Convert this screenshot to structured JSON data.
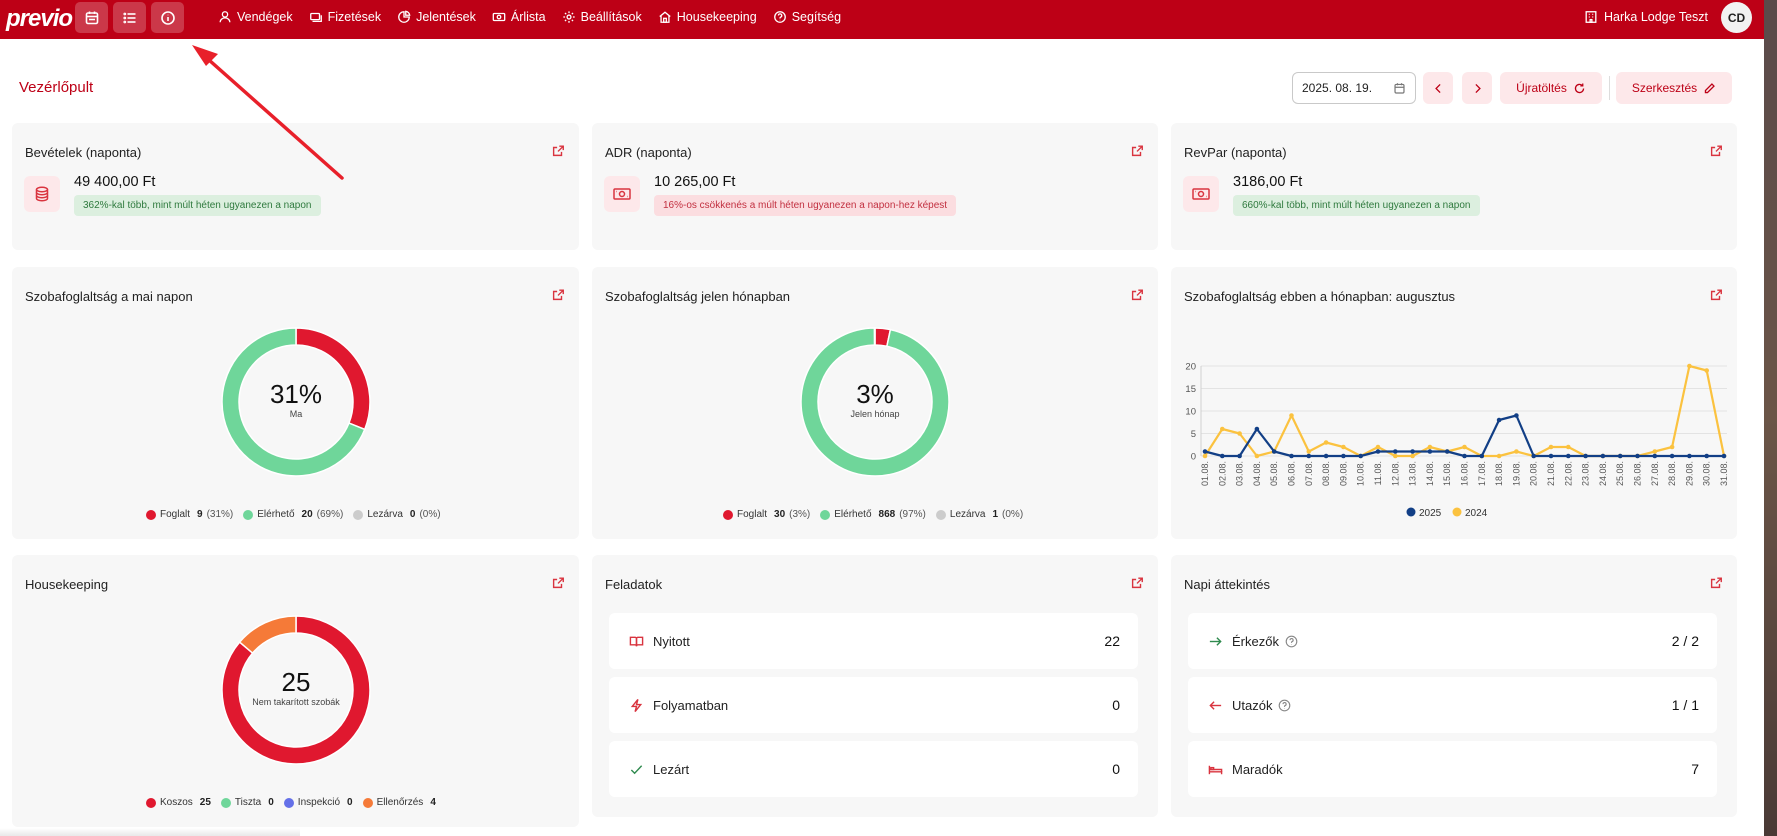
{
  "app": {
    "logo": "previo",
    "hotel_name": "Harka Lodge Teszt",
    "user_initials": "CD"
  },
  "quick_buttons": [
    {
      "icon": "calendar-icon"
    },
    {
      "icon": "list-icon"
    },
    {
      "icon": "info-icon"
    }
  ],
  "nav": [
    {
      "label": "Vendégek",
      "icon": "user-icon"
    },
    {
      "label": "Fizetések",
      "icon": "payments-icon"
    },
    {
      "label": "Jelentések",
      "icon": "pie-chart-icon"
    },
    {
      "label": "Árlista",
      "icon": "banknote-icon"
    },
    {
      "label": "Beállítások",
      "icon": "gear-icon"
    },
    {
      "label": "Housekeeping",
      "icon": "house-icon"
    },
    {
      "label": "Segítség",
      "icon": "help-icon"
    }
  ],
  "header": {
    "title": "Vezérlőpult",
    "date_value": "2025. 08. 19.",
    "reload_label": "Újratöltés",
    "edit_label": "Szerkesztés"
  },
  "kpis": [
    {
      "title": "Bevételek (naponta)",
      "icon": "coins-icon",
      "value": "49 400,00 Ft",
      "badge": "362%-kal több, mint múlt héten ugyanezen a napon",
      "trend": "up"
    },
    {
      "title": "ADR (naponta)",
      "icon": "banknote-icon",
      "value": "10 265,00 Ft",
      "badge": "16%-os csökkenés a múlt héten ugyanezen a napon-hez képest",
      "trend": "down"
    },
    {
      "title": "RevPar (naponta)",
      "icon": "banknote-icon",
      "value": "3186,00 Ft",
      "badge": "660%-kal több, mint múlt héten ugyanezen a napon",
      "trend": "up"
    }
  ],
  "occupancy_today": {
    "title": "Szobafoglaltság a mai napon",
    "center_value": "31%",
    "center_label": "Ma",
    "legend": [
      {
        "label": "Foglalt",
        "value": "9",
        "pct": "(31%)",
        "color": "#e0182f"
      },
      {
        "label": "Elérhető",
        "value": "20",
        "pct": "(69%)",
        "color": "#6fd69a"
      },
      {
        "label": "Lezárva",
        "value": "0",
        "pct": "(0%)",
        "color": "#cccccc"
      }
    ]
  },
  "occupancy_month": {
    "title": "Szobafoglaltság jelen hónapban",
    "center_value": "3%",
    "center_label": "Jelen hónap",
    "legend": [
      {
        "label": "Foglalt",
        "value": "30",
        "pct": "(3%)",
        "color": "#e0182f"
      },
      {
        "label": "Elérhető",
        "value": "868",
        "pct": "(97%)",
        "color": "#6fd69a"
      },
      {
        "label": "Lezárva",
        "value": "1",
        "pct": "(0%)",
        "color": "#cccccc"
      }
    ]
  },
  "housekeeping": {
    "title": "Housekeeping",
    "center_value": "25",
    "center_label": "Nem takarított szobák",
    "legend": [
      {
        "label": "Koszos",
        "value": "25",
        "color": "#e0182f"
      },
      {
        "label": "Tiszta",
        "value": "0",
        "color": "#6fd69a"
      },
      {
        "label": "Inspekció",
        "value": "0",
        "color": "#6470e8"
      },
      {
        "label": "Ellenőrzés",
        "value": "4",
        "color": "#f57a38"
      }
    ]
  },
  "chart_data": {
    "type": "line",
    "title": "Szobafoglaltság ebben a hónapban: augusztus",
    "categories": [
      "01.08.",
      "02.08.",
      "03.08.",
      "04.08.",
      "05.08.",
      "06.08.",
      "07.08.",
      "08.08.",
      "09.08.",
      "10.08.",
      "11.08.",
      "12.08.",
      "13.08.",
      "14.08.",
      "15.08.",
      "16.08.",
      "17.08.",
      "18.08.",
      "19.08.",
      "20.08.",
      "21.08.",
      "22.08.",
      "23.08.",
      "24.08.",
      "25.08.",
      "26.08.",
      "27.08.",
      "28.08.",
      "29.08.",
      "30.08.",
      "31.08."
    ],
    "ylim": [
      0,
      20
    ],
    "yticks": [
      0,
      5,
      10,
      15,
      20
    ],
    "grid": true,
    "legend_position": "bottom",
    "series": [
      {
        "name": "2025",
        "color": "#123f86",
        "values": [
          1,
          0,
          0,
          6,
          1,
          0,
          0,
          0,
          0,
          0,
          1,
          1,
          1,
          1,
          1,
          0,
          0,
          8,
          9,
          0,
          0,
          0,
          0,
          0,
          0,
          0,
          0,
          0,
          0,
          0,
          0
        ]
      },
      {
        "name": "2024",
        "color": "#fbc23f",
        "values": [
          0,
          6,
          5,
          0,
          1,
          9,
          1,
          3,
          2,
          0,
          2,
          0,
          0,
          2,
          1,
          2,
          0,
          0,
          1,
          0,
          2,
          2,
          0,
          0,
          0,
          0,
          1,
          2,
          20,
          19,
          0
        ]
      }
    ]
  },
  "tasks": {
    "title": "Feladatok",
    "rows": [
      {
        "label": "Nyitott",
        "value": "22",
        "icon": "book-open-icon"
      },
      {
        "label": "Folyamatban",
        "value": "0",
        "icon": "lightning-icon"
      },
      {
        "label": "Lezárt",
        "value": "0",
        "icon": "check-icon"
      }
    ]
  },
  "daily": {
    "title": "Napi áttekintés",
    "rows": [
      {
        "label": "Érkezők",
        "value": "2 / 2",
        "icon": "arrow-right-icon"
      },
      {
        "label": "Utazók",
        "value": "1 / 1",
        "icon": "arrow-left-icon"
      },
      {
        "label": "Maradók",
        "value": "7",
        "icon": "bed-icon"
      }
    ]
  }
}
